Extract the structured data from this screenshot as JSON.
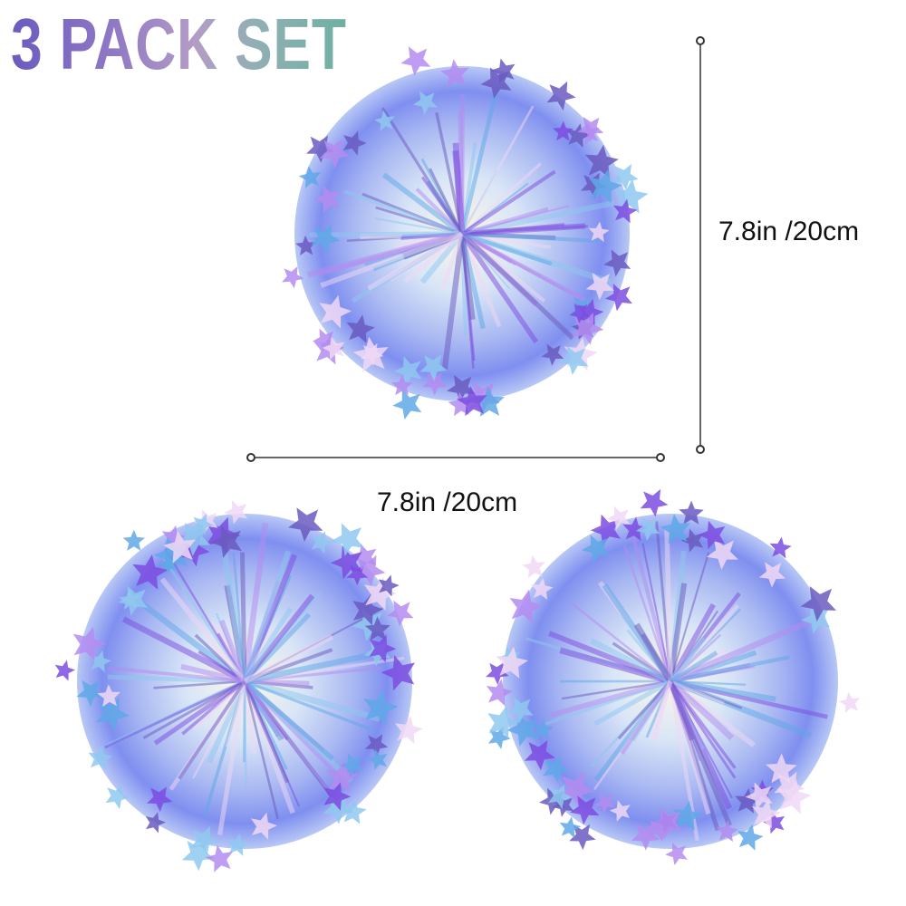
{
  "title": "3 PACK SET",
  "dimensions": {
    "height_label": "7.8in /20cm",
    "width_label": "7.8in /20cm"
  },
  "product": {
    "count": 3,
    "item": "iridescent star tinsel pom-pom ball",
    "colors": [
      "#6a5bbf",
      "#8fc8f0",
      "#b48cf0",
      "#f0d8f5",
      "#5fa8e8",
      "#7d4ce0"
    ]
  },
  "title_gradient": [
    "#6a5bbf",
    "#b39cc6",
    "#6eb0a3"
  ]
}
